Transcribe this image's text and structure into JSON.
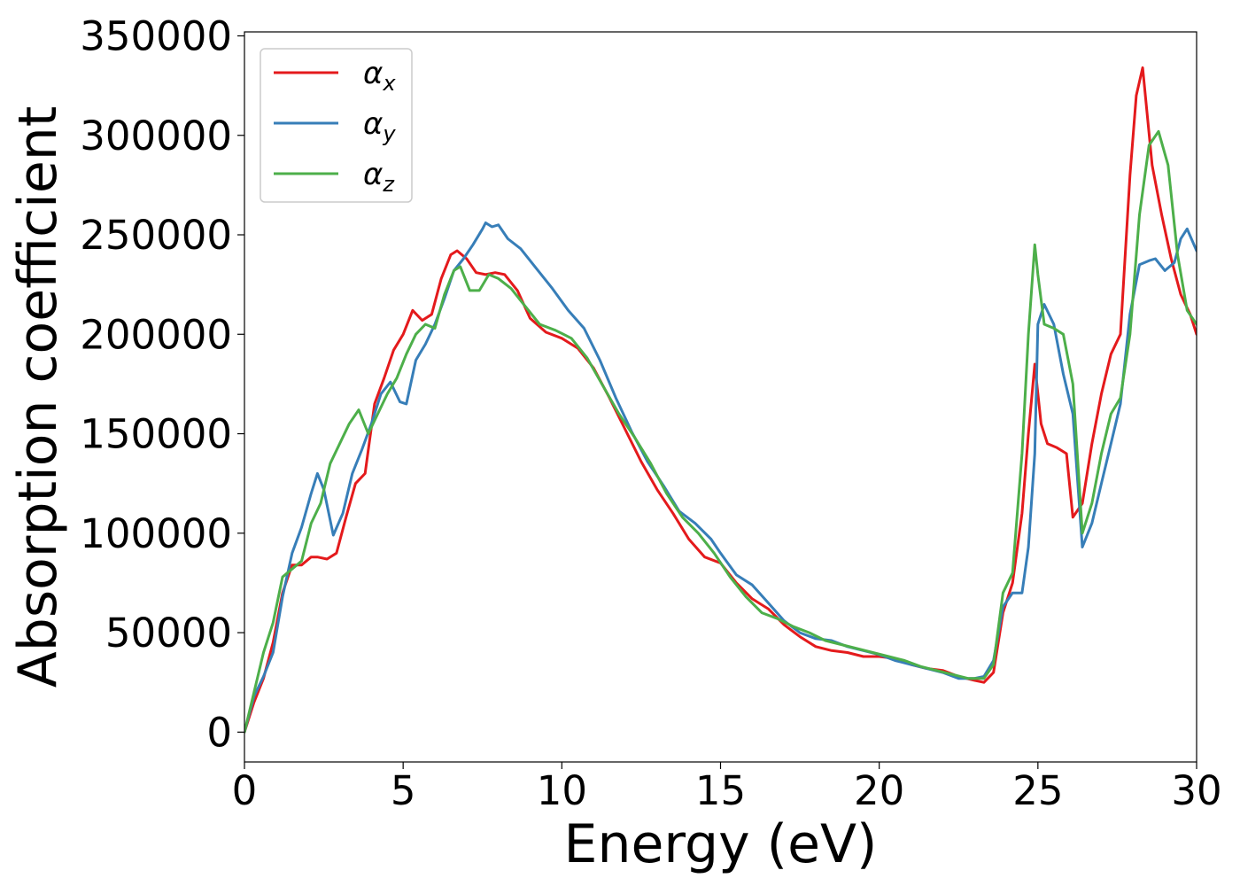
{
  "chart_data": {
    "type": "line",
    "xlabel": "Energy (eV)",
    "ylabel": "Absorption coefficient",
    "xlim": [
      0,
      30
    ],
    "ylim": [
      -15000,
      352000
    ],
    "xticks": [
      0,
      5,
      10,
      15,
      20,
      25,
      30
    ],
    "xtick_labels": [
      "0",
      "5",
      "10",
      "15",
      "20",
      "25",
      "30"
    ],
    "yticks": [
      0,
      50000,
      100000,
      150000,
      200000,
      250000,
      300000,
      350000
    ],
    "ytick_labels": [
      "0",
      "50000",
      "100000",
      "150000",
      "200000",
      "250000",
      "300000",
      "350000"
    ],
    "grid": false,
    "legend_position": "top-left",
    "series": [
      {
        "name": "α_x",
        "label_base": "α",
        "label_sub": "x",
        "color": "#e41a1c",
        "x": [
          0,
          0.3,
          0.6,
          0.9,
          1.2,
          1.5,
          1.8,
          2.1,
          2.3,
          2.6,
          2.9,
          3.2,
          3.5,
          3.8,
          4.1,
          4.4,
          4.7,
          5.0,
          5.3,
          5.6,
          5.9,
          6.2,
          6.5,
          6.7,
          7.0,
          7.3,
          7.6,
          7.9,
          8.2,
          8.6,
          9.0,
          9.5,
          10.0,
          10.5,
          11.0,
          11.5,
          12.0,
          12.5,
          13.0,
          13.5,
          14.0,
          14.5,
          15.0,
          15.5,
          16.0,
          16.5,
          17.0,
          17.5,
          18.0,
          18.5,
          19.0,
          19.5,
          20.0,
          20.5,
          21.0,
          21.5,
          22.0,
          22.5,
          23.0,
          23.3,
          23.6,
          23.9,
          24.2,
          24.5,
          24.7,
          24.9,
          25.1,
          25.3,
          25.6,
          25.9,
          26.1,
          26.4,
          26.7,
          27.0,
          27.3,
          27.6,
          27.9,
          28.1,
          28.3,
          28.6,
          28.9,
          29.2,
          29.5,
          29.8,
          30.0
        ],
        "y": [
          0,
          15000,
          27000,
          45000,
          70000,
          84000,
          84000,
          88000,
          88000,
          87000,
          90000,
          108000,
          125000,
          130000,
          165000,
          178000,
          192000,
          200000,
          212000,
          207000,
          210000,
          228000,
          240000,
          242000,
          238000,
          231000,
          230000,
          231000,
          230000,
          222000,
          208000,
          201000,
          198000,
          193000,
          183000,
          168000,
          152000,
          136000,
          122000,
          110000,
          97000,
          88000,
          85000,
          75000,
          67000,
          62000,
          54000,
          48000,
          43000,
          41000,
          40000,
          38000,
          38000,
          37000,
          34000,
          32000,
          31000,
          28000,
          26000,
          25000,
          30000,
          60000,
          75000,
          110000,
          150000,
          185000,
          155000,
          145000,
          143000,
          140000,
          108000,
          115000,
          145000,
          170000,
          190000,
          200000,
          280000,
          320000,
          334000,
          285000,
          260000,
          238000,
          220000,
          210000,
          200000
        ]
      },
      {
        "name": "α_y",
        "label_base": "α",
        "label_sub": "y",
        "color": "#377eb8",
        "x": [
          0,
          0.3,
          0.6,
          0.9,
          1.2,
          1.5,
          1.8,
          2.1,
          2.3,
          2.5,
          2.8,
          3.1,
          3.4,
          3.7,
          4.0,
          4.3,
          4.6,
          4.9,
          5.1,
          5.4,
          5.7,
          6.0,
          6.3,
          6.6,
          6.9,
          7.2,
          7.5,
          7.6,
          7.8,
          8.0,
          8.3,
          8.7,
          9.2,
          9.7,
          10.2,
          10.7,
          11.2,
          11.7,
          12.2,
          12.7,
          13.2,
          13.7,
          14.2,
          14.7,
          15.0,
          15.5,
          16.0,
          16.5,
          17.0,
          17.5,
          18.0,
          18.5,
          19.0,
          19.5,
          20.0,
          20.5,
          21.0,
          21.5,
          22.0,
          22.5,
          23.0,
          23.3,
          23.6,
          23.9,
          24.2,
          24.5,
          24.7,
          24.9,
          25.0,
          25.2,
          25.5,
          25.8,
          26.1,
          26.4,
          26.7,
          27.0,
          27.3,
          27.6,
          27.9,
          28.2,
          28.5,
          28.7,
          29.0,
          29.3,
          29.5,
          29.7,
          30.0
        ],
        "y": [
          0,
          18000,
          28000,
          40000,
          68000,
          90000,
          103000,
          120000,
          130000,
          122000,
          99000,
          110000,
          130000,
          142000,
          155000,
          170000,
          176000,
          166000,
          165000,
          187000,
          195000,
          205000,
          218000,
          232000,
          238000,
          245000,
          253000,
          256000,
          254000,
          255000,
          248000,
          243000,
          233000,
          223000,
          212000,
          203000,
          187000,
          168000,
          151000,
          136000,
          124000,
          111000,
          105000,
          97000,
          90000,
          79000,
          74000,
          65000,
          56000,
          50000,
          47000,
          46000,
          43000,
          41000,
          39000,
          36000,
          34000,
          32000,
          30000,
          27000,
          27000,
          28000,
          36000,
          63000,
          70000,
          70000,
          93000,
          140000,
          205000,
          215000,
          205000,
          180000,
          160000,
          93000,
          105000,
          125000,
          145000,
          165000,
          210000,
          235000,
          237000,
          238000,
          232000,
          236000,
          248000,
          253000,
          242000
        ]
      },
      {
        "name": "α_z",
        "label_base": "α",
        "label_sub": "z",
        "color": "#4daf4a",
        "x": [
          0,
          0.3,
          0.6,
          0.9,
          1.2,
          1.5,
          1.8,
          2.1,
          2.4,
          2.7,
          3.0,
          3.3,
          3.6,
          3.9,
          4.2,
          4.5,
          4.8,
          5.1,
          5.4,
          5.7,
          6.0,
          6.3,
          6.6,
          6.8,
          7.1,
          7.4,
          7.7,
          8.0,
          8.4,
          8.8,
          9.3,
          9.8,
          10.3,
          10.8,
          11.3,
          11.8,
          12.3,
          12.8,
          13.3,
          13.8,
          14.3,
          14.8,
          15.3,
          15.8,
          16.3,
          16.8,
          17.3,
          17.8,
          18.3,
          18.8,
          19.3,
          19.8,
          20.3,
          20.8,
          21.3,
          21.8,
          22.3,
          22.8,
          23.3,
          23.6,
          23.9,
          24.2,
          24.5,
          24.7,
          24.9,
          25.0,
          25.2,
          25.5,
          25.8,
          26.1,
          26.4,
          26.7,
          27.0,
          27.3,
          27.6,
          27.9,
          28.2,
          28.5,
          28.8,
          29.1,
          29.4,
          29.7,
          30.0
        ],
        "y": [
          0,
          20000,
          40000,
          55000,
          78000,
          82000,
          86000,
          105000,
          115000,
          135000,
          145000,
          155000,
          162000,
          150000,
          160000,
          170000,
          178000,
          190000,
          200000,
          205000,
          203000,
          220000,
          232000,
          234000,
          222000,
          222000,
          230000,
          228000,
          223000,
          215000,
          205000,
          202000,
          198000,
          188000,
          174000,
          160000,
          148000,
          135000,
          120000,
          108000,
          100000,
          90000,
          78000,
          68000,
          60000,
          57000,
          53000,
          50000,
          46000,
          44000,
          42000,
          40000,
          38000,
          36000,
          33000,
          31000,
          29000,
          27000,
          27000,
          34000,
          70000,
          80000,
          140000,
          200000,
          245000,
          230000,
          205000,
          203000,
          200000,
          175000,
          100000,
          115000,
          140000,
          160000,
          168000,
          200000,
          260000,
          295000,
          302000,
          285000,
          240000,
          212000,
          205000
        ]
      }
    ]
  }
}
